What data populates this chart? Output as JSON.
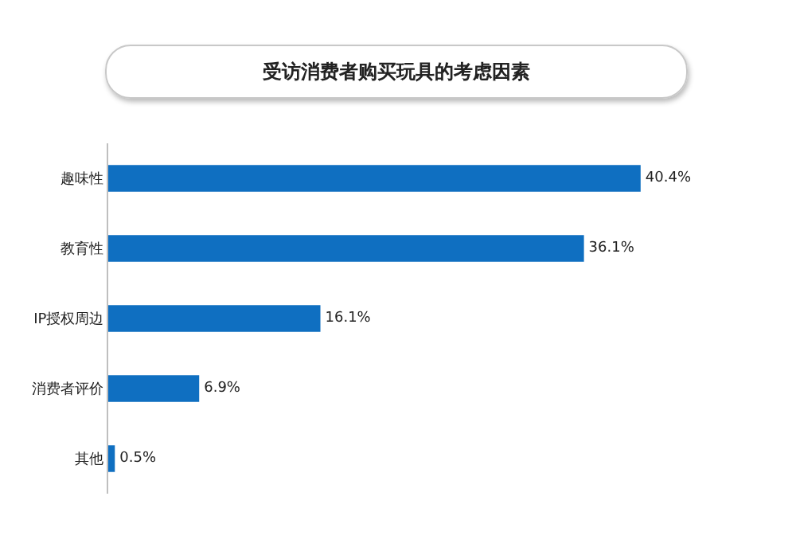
{
  "chart_data": {
    "type": "bar",
    "orientation": "horizontal",
    "title": "受访消费者购买玩具的考虑因素",
    "categories": [
      "趣味性",
      "教育性",
      "IP授权周边",
      "消费者评价",
      "其他"
    ],
    "values": [
      40.4,
      36.1,
      16.1,
      6.9,
      0.5
    ],
    "value_labels": [
      "40.4%",
      "36.1%",
      "16.1%",
      "6.9%",
      "0.5%"
    ],
    "color": "#0f6fc1",
    "tick_labels": "y",
    "grid": false
  }
}
